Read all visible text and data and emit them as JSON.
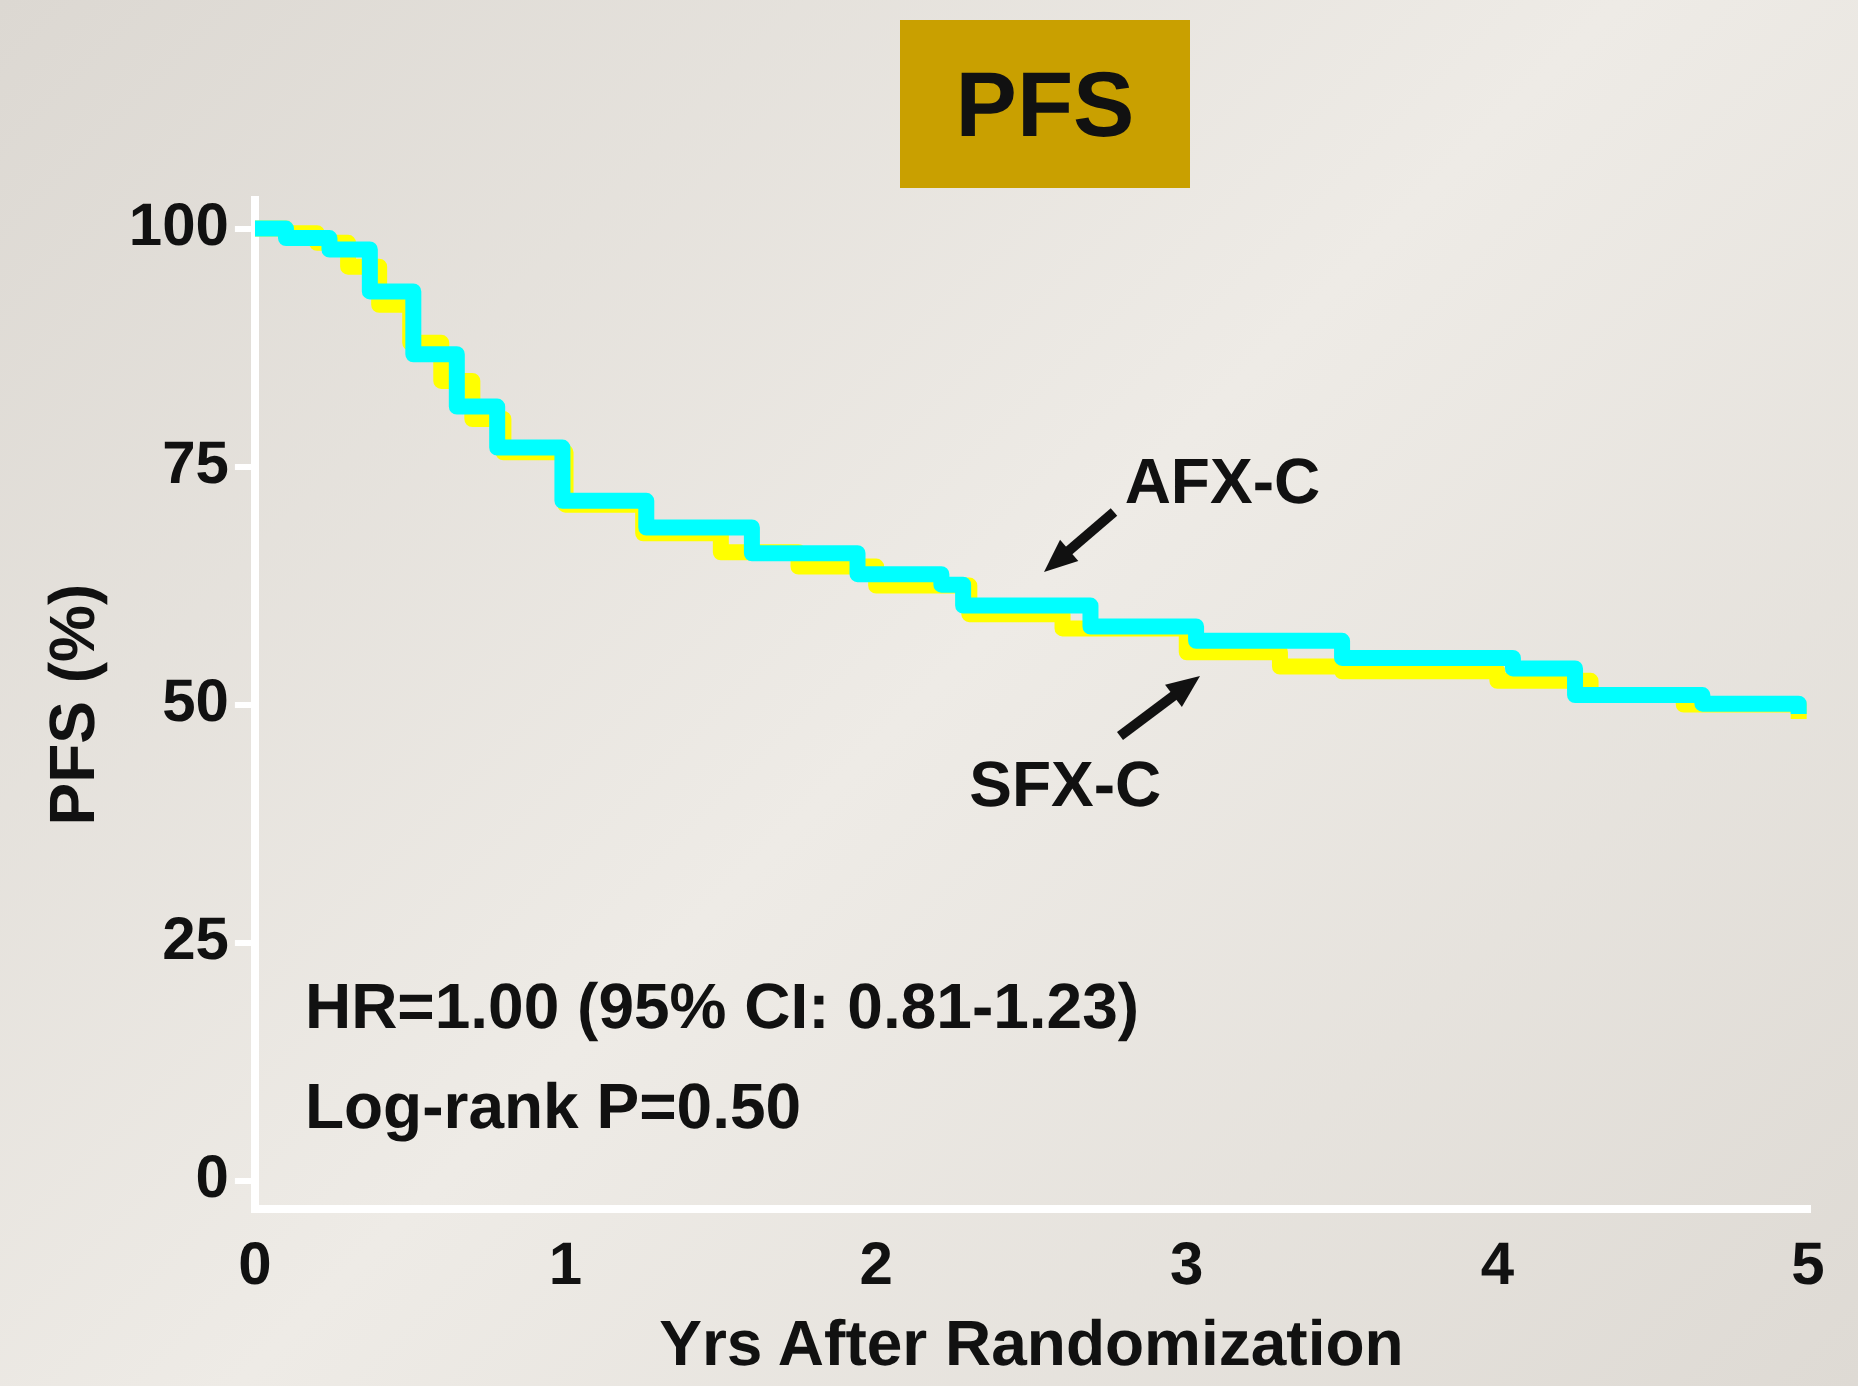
{
  "chart_data": {
    "type": "step",
    "title": "PFS",
    "xlabel": "Yrs After Randomization",
    "ylabel": "PFS (%)",
    "xlim": [
      0,
      5
    ],
    "xticks": [
      0,
      1,
      2,
      3,
      4,
      5
    ],
    "ylim": [
      -3,
      103
    ],
    "yticks": [
      0,
      25,
      50,
      75,
      100
    ],
    "grid": false,
    "legend": false,
    "marker": "none",
    "line_style": "solid",
    "series": [
      {
        "name": "SFX-C",
        "color": "#ffff00",
        "x": [
          0,
          0.1,
          0.2,
          0.3,
          0.4,
          0.5,
          0.6,
          0.7,
          0.8,
          1.0,
          1.25,
          1.5,
          1.75,
          2.0,
          2.3,
          2.6,
          3.0,
          3.3,
          3.5,
          4.0,
          4.3,
          4.6,
          4.97
        ],
        "values": [
          100,
          99.5,
          98.5,
          96,
          92,
          88,
          84,
          80,
          76.5,
          71,
          68,
          66,
          64.5,
          62.5,
          59.5,
          58,
          55.5,
          54,
          53.5,
          52.5,
          51,
          50,
          48.5
        ]
      },
      {
        "name": "AFX-C",
        "color": "#00ffff",
        "x": [
          0,
          0.1,
          0.24,
          0.37,
          0.51,
          0.65,
          0.78,
          0.99,
          1.26,
          1.6,
          1.94,
          2.21,
          2.28,
          2.69,
          3.03,
          3.5,
          4.05,
          4.25,
          4.66,
          4.97
        ],
        "values": [
          100,
          99,
          97.8,
          93.4,
          86.8,
          81.3,
          77,
          71.4,
          68.6,
          65.9,
          63.7,
          62.6,
          60.4,
          58.2,
          56.7,
          54.9,
          53.8,
          51,
          50.1,
          49
        ]
      }
    ],
    "annotations": [
      "HR=1.00 (95% CI: 0.81-1.23)",
      "Log-rank P=0.50"
    ]
  }
}
